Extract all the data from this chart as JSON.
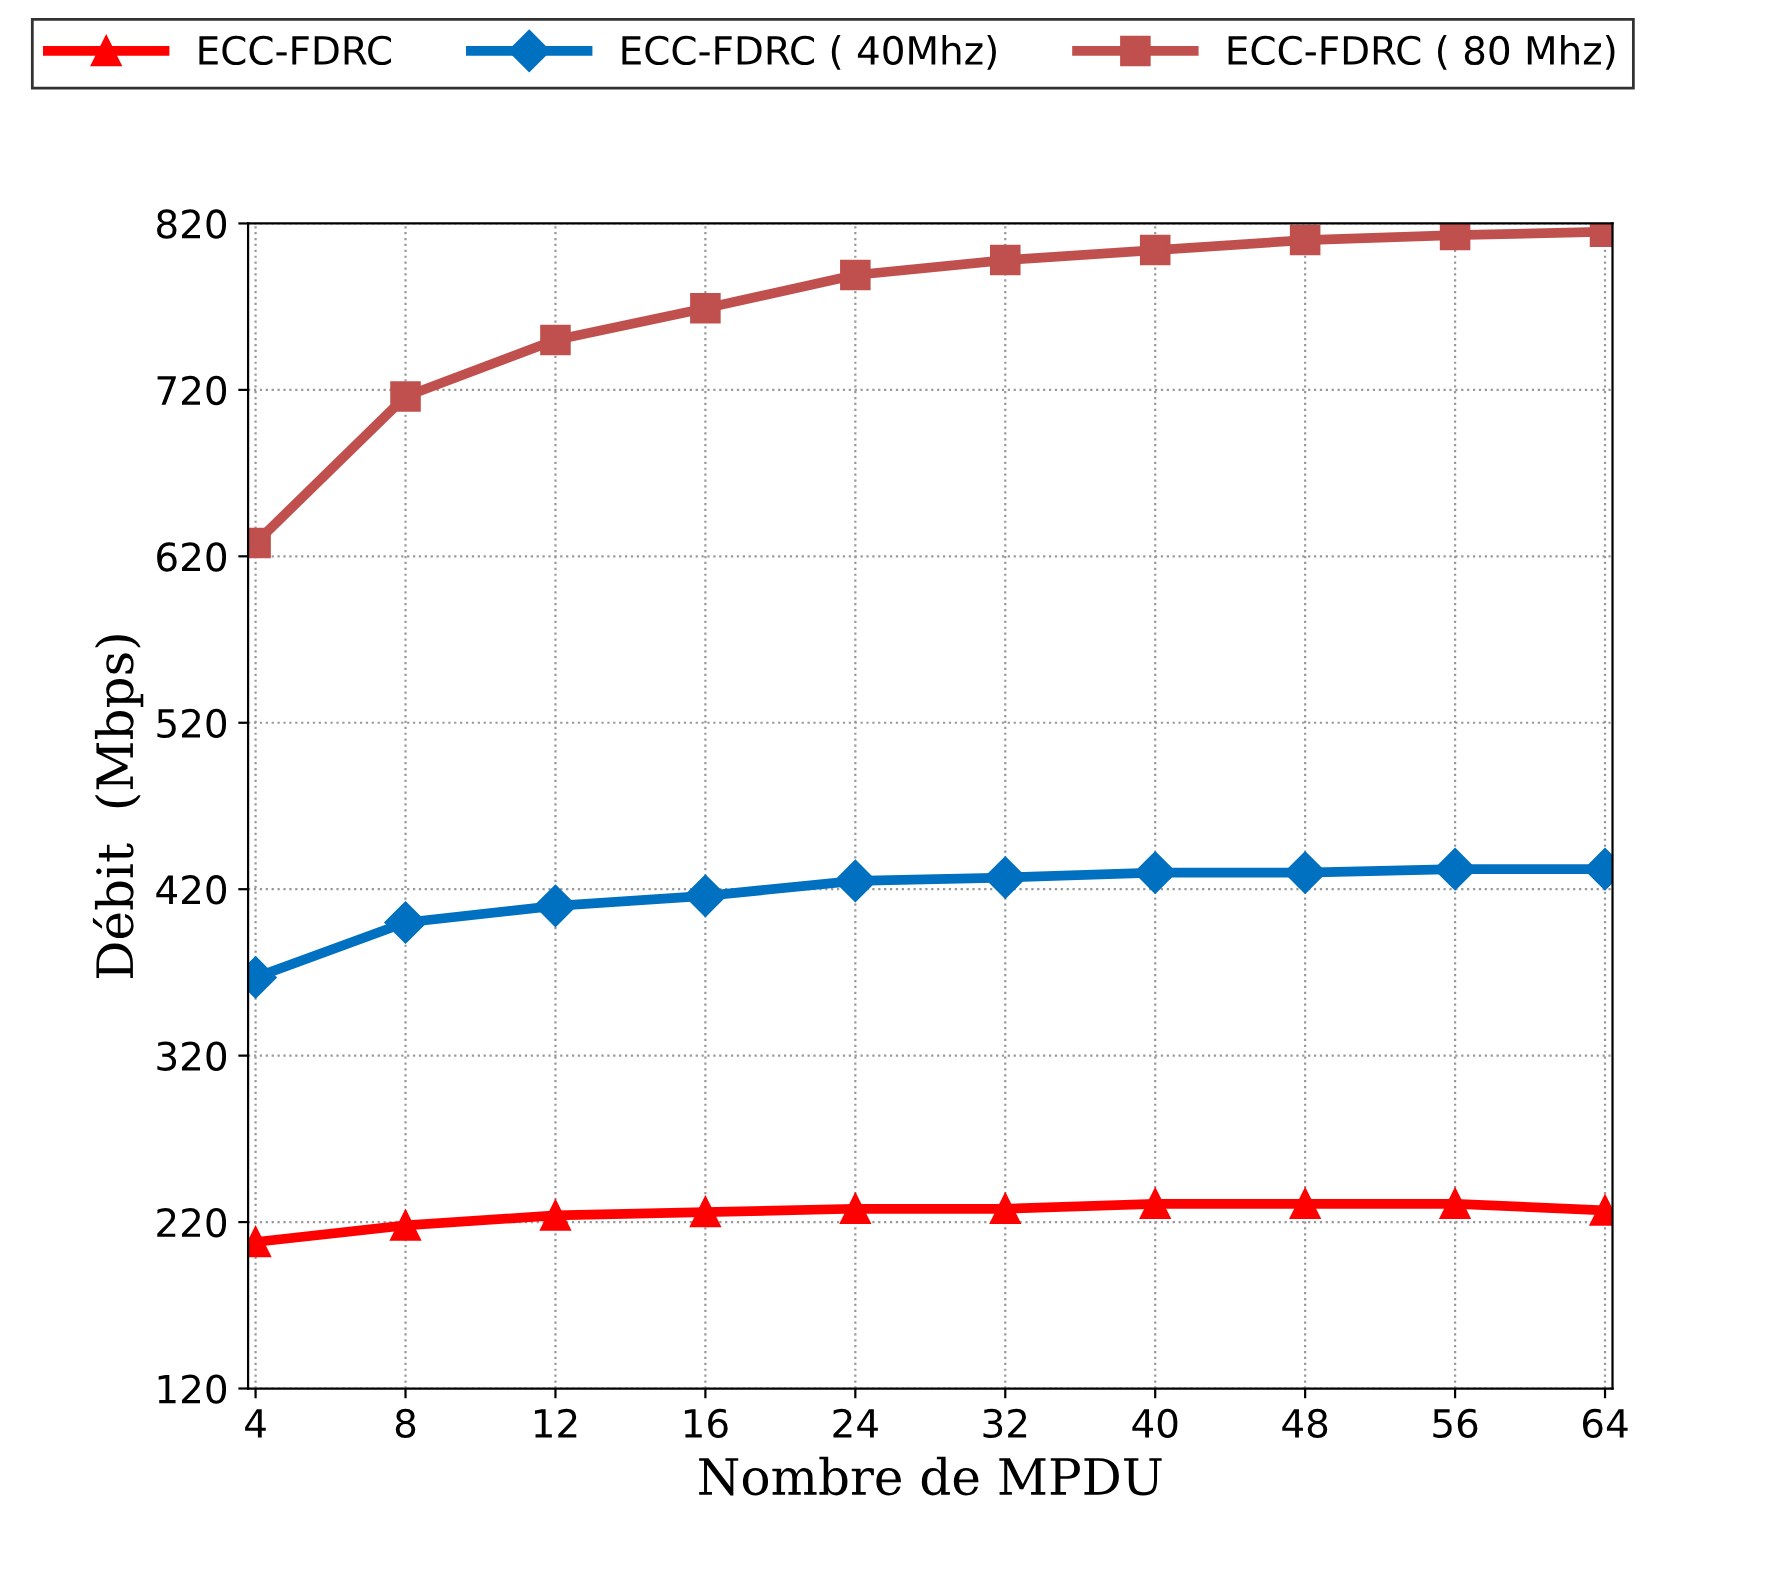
{
  "chart_data": {
    "type": "line",
    "xlabel": "Nombre de MPDU",
    "ylabel": "Débit  (Mbps)",
    "categories": [
      "4",
      "8",
      "12",
      "16",
      "24",
      "32",
      "40",
      "48",
      "56",
      "64"
    ],
    "series": [
      {
        "name": "ECC-FDRC",
        "color": "#ff0000",
        "marker": "triangle",
        "values": [
          208,
          218,
          224,
          226,
          228,
          228,
          231,
          231,
          231,
          227
        ]
      },
      {
        "name": "ECC-FDRC ( 40Mhz)",
        "color": "#0070c0",
        "marker": "diamond",
        "values": [
          367,
          400,
          410,
          416,
          425,
          427,
          430,
          430,
          432,
          432
        ]
      },
      {
        "name": "ECC-FDRC ( 80 Mhz)",
        "color": "#c0504d",
        "marker": "square",
        "values": [
          628,
          716,
          750,
          769,
          789,
          798,
          804,
          810,
          813,
          815
        ]
      }
    ],
    "ylim": [
      120,
      820
    ],
    "yticks": [
      120,
      220,
      320,
      420,
      520,
      620,
      720,
      820
    ],
    "grid": true,
    "legend": "top",
    "line_style": "solid"
  }
}
